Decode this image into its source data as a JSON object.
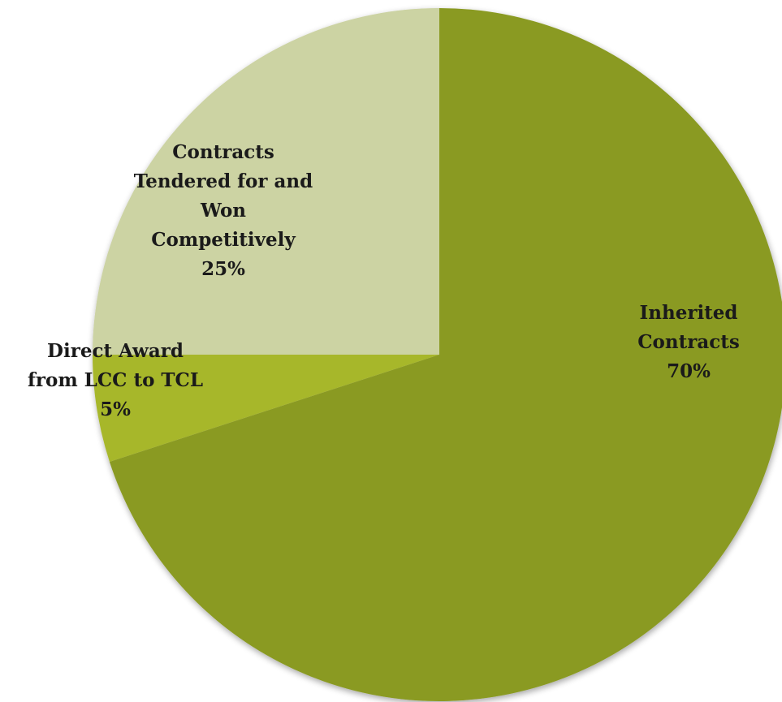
{
  "chart_data": {
    "type": "pie",
    "title": "",
    "start_angle_deg": 0,
    "direction": "clockwise",
    "slices": [
      {
        "label": "Inherited Contracts",
        "label_lines": [
          "Inherited",
          "Contracts"
        ],
        "value": 70,
        "value_label": "70%",
        "color": "#8a9a22"
      },
      {
        "label": "Direct Award from LCC to TCL",
        "label_lines": [
          "Direct Award",
          "from LCC to TCL"
        ],
        "value": 5,
        "value_label": "5%",
        "color": "#a7b72c"
      },
      {
        "label": "Contracts Tendered for and Won Competitively",
        "label_lines": [
          "Contracts",
          "Tendered for and",
          "Won",
          "Competitively"
        ],
        "value": 25,
        "value_label": "25%",
        "color": "#ccd3a3"
      }
    ]
  }
}
